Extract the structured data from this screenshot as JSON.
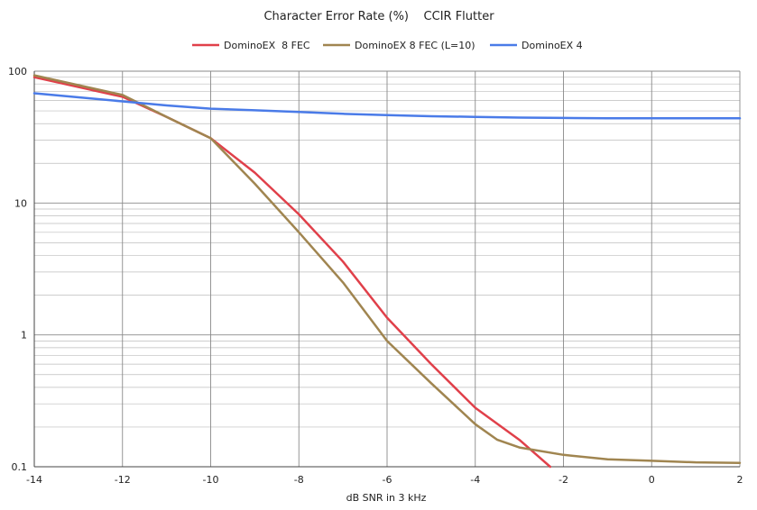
{
  "chart_data": {
    "type": "line",
    "title": "Character Error Rate (%)    CCIR Flutter",
    "xlabel": "dB SNR in 3 kHz",
    "ylabel": "",
    "xlim": [
      -14,
      2
    ],
    "ylim": [
      0.1,
      100
    ],
    "y_scale": "log",
    "grid": true,
    "legend_position": "top",
    "x_ticks": [
      "-14",
      "-12",
      "-10",
      "-8",
      "-6",
      "-4",
      "-2",
      "0",
      "2"
    ],
    "x_tick_values": [
      -14,
      -12,
      -10,
      -8,
      -6,
      -4,
      -2,
      0,
      2
    ],
    "y_ticks": [
      "100",
      "10",
      "1",
      "0.1"
    ],
    "y_tick_values": [
      100,
      10,
      1,
      0.1
    ],
    "series": [
      {
        "name": "DominoEX  8 FEC",
        "color": "#e0404a",
        "x": [
          -14,
          -12,
          -11,
          -10,
          -9,
          -8,
          -7,
          -6,
          -5,
          -4,
          -3,
          -2.3
        ],
        "y": [
          90,
          64,
          45,
          31,
          17,
          8.2,
          3.6,
          1.35,
          0.6,
          0.28,
          0.16,
          0.1
        ]
      },
      {
        "name": "DominoEX 8 FEC (L=10)",
        "color": "#a08550",
        "x": [
          -14,
          -12,
          -11,
          -10,
          -9,
          -8,
          -7,
          -6,
          -5,
          -4,
          -3.5,
          -3,
          -2,
          -1,
          0,
          1,
          2
        ],
        "y": [
          93,
          66,
          45,
          31,
          14,
          6,
          2.5,
          0.9,
          0.43,
          0.21,
          0.16,
          0.14,
          0.123,
          0.114,
          0.111,
          0.108,
          0.107
        ]
      },
      {
        "name": "DominoEX 4",
        "color": "#4a7be8",
        "x": [
          -14,
          -12,
          -11,
          -10,
          -9,
          -8,
          -7,
          -6,
          -5,
          -4,
          -3,
          -2,
          -1,
          0,
          1,
          2
        ],
        "y": [
          68,
          59,
          55,
          52,
          50.5,
          49,
          47.5,
          46.5,
          45.5,
          45,
          44.5,
          44.2,
          44,
          44,
          44,
          44
        ]
      }
    ]
  }
}
